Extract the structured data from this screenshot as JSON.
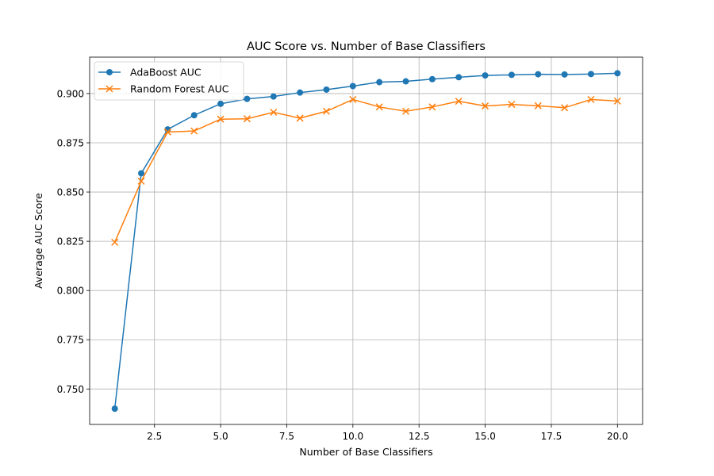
{
  "chart_data": {
    "type": "line",
    "title": "AUC Score vs. Number of Base Classifiers",
    "xlabel": "Number of Base Classifiers",
    "ylabel": "Average AUC Score",
    "xlim": [
      0.05,
      20.95
    ],
    "ylim": [
      0.732,
      0.9185
    ],
    "x_ticks": [
      2.5,
      5.0,
      7.5,
      10.0,
      12.5,
      15.0,
      17.5,
      20.0
    ],
    "y_ticks": [
      0.75,
      0.775,
      0.8,
      0.825,
      0.85,
      0.875,
      0.9
    ],
    "x_tick_labels": [
      "2.5",
      "5.0",
      "7.5",
      "10.0",
      "12.5",
      "15.0",
      "17.5",
      "20.0"
    ],
    "y_tick_labels": [
      "0.750",
      "0.775",
      "0.800",
      "0.825",
      "0.850",
      "0.875",
      "0.900"
    ],
    "grid": true,
    "legend_position": "top-left",
    "x": [
      1,
      2,
      3,
      4,
      5,
      6,
      7,
      8,
      9,
      10,
      11,
      12,
      13,
      14,
      15,
      16,
      17,
      18,
      19,
      20
    ],
    "series": [
      {
        "name": "AdaBoost AUC",
        "color": "#1f77b4",
        "marker": "circle",
        "values": [
          0.74,
          0.8595,
          0.8818,
          0.889,
          0.8948,
          0.8973,
          0.8985,
          0.9005,
          0.902,
          0.9038,
          0.9058,
          0.9062,
          0.9073,
          0.9083,
          0.9092,
          0.9095,
          0.9098,
          0.9097,
          0.9099,
          0.9103
        ]
      },
      {
        "name": "Random Forest AUC",
        "color": "#ff7f0e",
        "marker": "x",
        "values": [
          0.8245,
          0.8555,
          0.8805,
          0.881,
          0.887,
          0.8872,
          0.8905,
          0.8875,
          0.891,
          0.897,
          0.8932,
          0.891,
          0.8932,
          0.8961,
          0.8937,
          0.8945,
          0.8938,
          0.8928,
          0.897,
          0.8962
        ]
      }
    ]
  }
}
